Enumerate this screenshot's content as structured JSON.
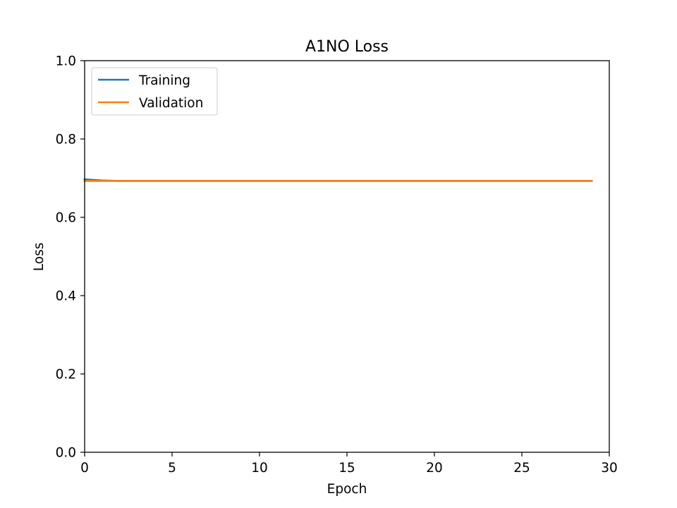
{
  "chart_data": {
    "type": "line",
    "title": "A1NO Loss",
    "xlabel": "Epoch",
    "ylabel": "Loss",
    "xlim": [
      0,
      30
    ],
    "ylim": [
      0,
      1
    ],
    "xticks": [
      0,
      5,
      10,
      15,
      20,
      25,
      30
    ],
    "xtick_labels": [
      "0",
      "5",
      "10",
      "15",
      "20",
      "25",
      "30"
    ],
    "yticks": [
      0,
      0.2,
      0.4,
      0.6,
      0.8,
      1.0
    ],
    "ytick_labels": [
      "0.0",
      "0.2",
      "0.4",
      "0.6",
      "0.8",
      "1.0"
    ],
    "grid": false,
    "legend_position": "top-left",
    "x": [
      0,
      1,
      2,
      3,
      4,
      5,
      6,
      7,
      8,
      9,
      10,
      11,
      12,
      13,
      14,
      15,
      16,
      17,
      18,
      19,
      20,
      21,
      22,
      23,
      24,
      25,
      26,
      27,
      28,
      29
    ],
    "series": [
      {
        "name": "Training",
        "color": "#1f77b4",
        "values": [
          0.697,
          0.694,
          0.693,
          0.693,
          0.693,
          0.693,
          0.693,
          0.693,
          0.693,
          0.693,
          0.693,
          0.693,
          0.693,
          0.693,
          0.693,
          0.693,
          0.693,
          0.693,
          0.693,
          0.693,
          0.693,
          0.693,
          0.693,
          0.693,
          0.693,
          0.693,
          0.693,
          0.693,
          0.693,
          0.693
        ]
      },
      {
        "name": "Validation",
        "color": "#ff7f0e",
        "values": [
          0.693,
          0.693,
          0.693,
          0.693,
          0.693,
          0.693,
          0.693,
          0.693,
          0.693,
          0.693,
          0.693,
          0.693,
          0.693,
          0.693,
          0.693,
          0.693,
          0.693,
          0.693,
          0.693,
          0.693,
          0.693,
          0.693,
          0.693,
          0.693,
          0.693,
          0.693,
          0.693,
          0.693,
          0.693,
          0.693
        ]
      }
    ]
  }
}
